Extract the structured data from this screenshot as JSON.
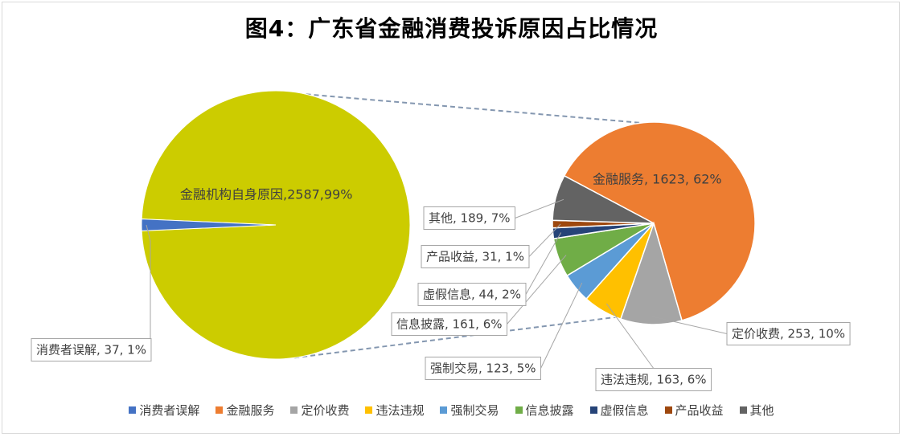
{
  "chart_data": {
    "type": "bar-of-pie",
    "title": "图4：广东省金融消费投诉原因占比情况",
    "primary_pie": {
      "slices": [
        {
          "name": "金融机构自身原因",
          "value": 2587,
          "percent": "99%",
          "color": "#cccc00",
          "label": "金融机构自身原因,2587,99%"
        },
        {
          "name": "消费者误解",
          "value": 37,
          "percent": "1%",
          "color": "#4472c4",
          "label": "消费者误解, 37, 1%"
        }
      ]
    },
    "secondary_pie": {
      "slices": [
        {
          "name": "金融服务",
          "value": 1623,
          "percent": "62%",
          "color": "#ed7d31",
          "label": "金融服务, 1623, 62%"
        },
        {
          "name": "定价收费",
          "value": 253,
          "percent": "10%",
          "color": "#a5a5a5",
          "label": "定价收费, 253, 10%"
        },
        {
          "name": "违法违规",
          "value": 163,
          "percent": "6%",
          "color": "#ffc000",
          "label": "违法违规, 163, 6%"
        },
        {
          "name": "强制交易",
          "value": 123,
          "percent": "5%",
          "color": "#5b9bd5",
          "label": "强制交易, 123, 5%"
        },
        {
          "name": "信息披露",
          "value": 161,
          "percent": "6%",
          "color": "#70ad47",
          "label": "信息披露, 161, 6%"
        },
        {
          "name": "虚假信息",
          "value": 44,
          "percent": "2%",
          "color": "#264478",
          "label": "虚假信息, 44, 2%"
        },
        {
          "name": "产品收益",
          "value": 31,
          "percent": "1%",
          "color": "#9e480e",
          "label": "产品收益, 31, 1%"
        },
        {
          "name": "其他",
          "value": 189,
          "percent": "7%",
          "color": "#636363",
          "label": "其他, 189, 7%"
        }
      ]
    },
    "legend": [
      {
        "name": "消费者误解",
        "color": "#4472c4"
      },
      {
        "name": "金融服务",
        "color": "#ed7d31"
      },
      {
        "name": "定价收费",
        "color": "#a5a5a5"
      },
      {
        "name": "违法违规",
        "color": "#ffc000"
      },
      {
        "name": "强制交易",
        "color": "#5b9bd5"
      },
      {
        "name": "信息披露",
        "color": "#70ad47"
      },
      {
        "name": "虚假信息",
        "color": "#264478"
      },
      {
        "name": "产品收益",
        "color": "#9e480e"
      },
      {
        "name": "其他",
        "color": "#636363"
      }
    ],
    "legend_position": "bottom"
  }
}
